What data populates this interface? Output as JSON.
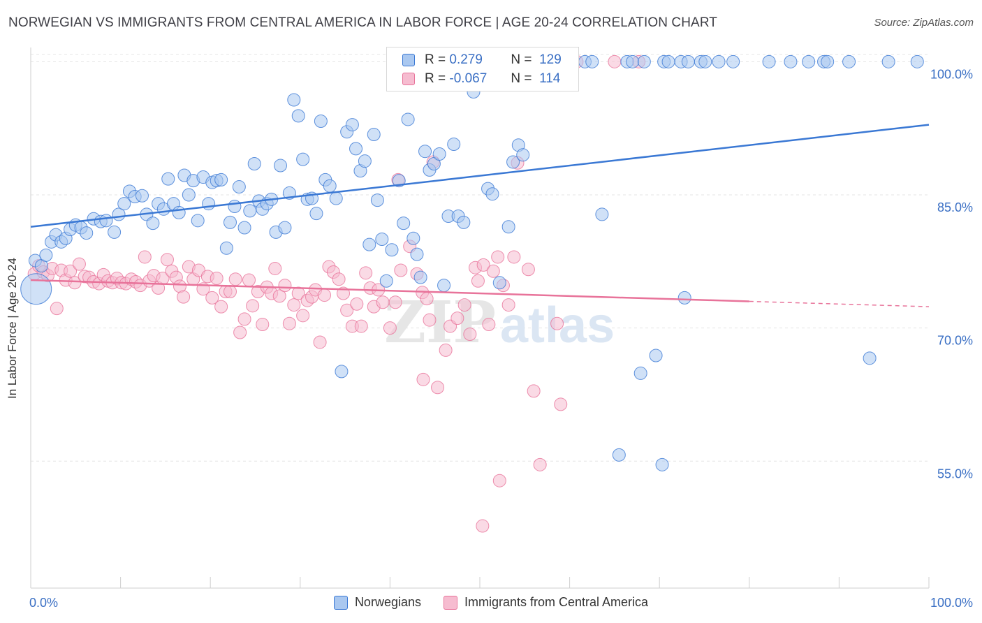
{
  "title": "NORWEGIAN VS IMMIGRANTS FROM CENTRAL AMERICA IN LABOR FORCE | AGE 20-24 CORRELATION CHART",
  "source": "Source: ZipAtlas.com",
  "colors": {
    "blue": "#3a78d4",
    "blue_fill": "#aac8f0",
    "pink": "#e8739a",
    "pink_fill": "#f6bcd0",
    "axis_label": "#3a6fc4"
  },
  "legend_top": [
    {
      "r_label": "R =",
      "r_value": " 0.279",
      "n_label": "N =",
      "n_value": "129"
    },
    {
      "r_label": "R =",
      "r_value": "-0.067",
      "n_label": "N =",
      "n_value": "114"
    }
  ],
  "legend_bottom": [
    "Norwegians",
    "Immigrants from Central America"
  ],
  "chart_data": {
    "type": "scatter",
    "title": "NORWEGIAN VS IMMIGRANTS FROM CENTRAL AMERICA IN LABOR FORCE | AGE 20-24 CORRELATION CHART",
    "ylabel": "In Labor Force | Age 20-24",
    "xlabel": "",
    "x_tick_labels": [
      "0.0%",
      "100.0%"
    ],
    "y_tick_labels": [
      "100.0%",
      "85.0%",
      "70.0%",
      "55.0%"
    ],
    "y_ticks": [
      100,
      85,
      70,
      55
    ],
    "xlim": [
      0,
      100
    ],
    "ylim": [
      40.7,
      101.6
    ],
    "watermark": "ZIPatlas",
    "series": [
      {
        "name": "Norwegians",
        "color": "#3a78d4",
        "trend": {
          "x": [
            0,
            100
          ],
          "y": [
            81.4,
            92.9
          ]
        },
        "points": [
          [
            0.6,
            74.4
          ],
          [
            0.5,
            77.6
          ],
          [
            1.2,
            77.0
          ],
          [
            1.7,
            78.2
          ],
          [
            2.3,
            79.7
          ],
          [
            2.8,
            80.5
          ],
          [
            3.4,
            79.7
          ],
          [
            3.9,
            80.1
          ],
          [
            4.4,
            81.1
          ],
          [
            5.0,
            81.6
          ],
          [
            5.6,
            81.3
          ],
          [
            6.2,
            80.7
          ],
          [
            7.0,
            82.3
          ],
          [
            7.8,
            82.0
          ],
          [
            8.4,
            82.1
          ],
          [
            9.3,
            80.8
          ],
          [
            9.8,
            82.8
          ],
          [
            10.4,
            84.0
          ],
          [
            11.0,
            85.4
          ],
          [
            11.6,
            84.8
          ],
          [
            12.4,
            84.9
          ],
          [
            12.9,
            82.8
          ],
          [
            13.6,
            81.8
          ],
          [
            14.2,
            84.0
          ],
          [
            14.8,
            83.4
          ],
          [
            15.3,
            86.8
          ],
          [
            15.9,
            84.0
          ],
          [
            16.5,
            83.0
          ],
          [
            17.1,
            87.2
          ],
          [
            17.6,
            85.0
          ],
          [
            18.1,
            86.6
          ],
          [
            18.6,
            82.1
          ],
          [
            19.2,
            87.0
          ],
          [
            19.8,
            84.0
          ],
          [
            20.2,
            86.4
          ],
          [
            20.7,
            86.6
          ],
          [
            21.2,
            86.7
          ],
          [
            21.8,
            79.0
          ],
          [
            22.2,
            81.9
          ],
          [
            22.7,
            83.7
          ],
          [
            23.2,
            85.9
          ],
          [
            23.8,
            81.3
          ],
          [
            24.4,
            83.2
          ],
          [
            24.9,
            88.5
          ],
          [
            25.4,
            84.3
          ],
          [
            25.8,
            83.4
          ],
          [
            26.3,
            84.0
          ],
          [
            26.8,
            84.5
          ],
          [
            27.3,
            80.8
          ],
          [
            27.8,
            88.3
          ],
          [
            28.3,
            81.3
          ],
          [
            28.8,
            85.2
          ],
          [
            29.3,
            95.7
          ],
          [
            29.8,
            93.9
          ],
          [
            30.3,
            89.0
          ],
          [
            30.8,
            84.5
          ],
          [
            31.3,
            84.6
          ],
          [
            31.8,
            82.9
          ],
          [
            32.3,
            93.3
          ],
          [
            32.8,
            86.7
          ],
          [
            33.3,
            86.0
          ],
          [
            34.0,
            84.6
          ],
          [
            34.6,
            65.1
          ],
          [
            35.2,
            92.1
          ],
          [
            35.8,
            92.9
          ],
          [
            36.2,
            90.2
          ],
          [
            36.7,
            87.7
          ],
          [
            37.2,
            88.8
          ],
          [
            37.7,
            79.4
          ],
          [
            38.2,
            91.8
          ],
          [
            38.6,
            84.4
          ],
          [
            39.1,
            80.0
          ],
          [
            39.6,
            75.3
          ],
          [
            40.2,
            78.8
          ],
          [
            41.0,
            86.6
          ],
          [
            41.5,
            81.8
          ],
          [
            42.0,
            93.5
          ],
          [
            42.6,
            80.1
          ],
          [
            43.0,
            78.3
          ],
          [
            43.4,
            75.7
          ],
          [
            43.9,
            89.9
          ],
          [
            44.4,
            87.8
          ],
          [
            44.9,
            88.5
          ],
          [
            45.5,
            89.6
          ],
          [
            46.0,
            74.8
          ],
          [
            46.5,
            82.6
          ],
          [
            47.1,
            90.7
          ],
          [
            47.6,
            82.6
          ],
          [
            48.2,
            81.9
          ],
          [
            48.8,
            100.0
          ],
          [
            49.3,
            96.6
          ],
          [
            50.3,
            100.0
          ],
          [
            50.9,
            85.7
          ],
          [
            51.4,
            85.1
          ],
          [
            52.2,
            75.1
          ],
          [
            53.2,
            81.4
          ],
          [
            53.7,
            88.7
          ],
          [
            54.3,
            90.6
          ],
          [
            54.8,
            89.5
          ],
          [
            55.4,
            100.0
          ],
          [
            56.4,
            100.0
          ],
          [
            57.0,
            99.8
          ],
          [
            59.4,
            100.0
          ],
          [
            60.2,
            100.0
          ],
          [
            61.7,
            100.0
          ],
          [
            62.5,
            100.0
          ],
          [
            63.6,
            82.8
          ],
          [
            65.5,
            55.7
          ],
          [
            66.4,
            100.0
          ],
          [
            67.0,
            100.0
          ],
          [
            68.3,
            100.0
          ],
          [
            69.6,
            66.9
          ],
          [
            70.5,
            100.0
          ],
          [
            71.0,
            100.0
          ],
          [
            72.4,
            100.0
          ],
          [
            73.2,
            100.0
          ],
          [
            74.6,
            100.0
          ],
          [
            75.1,
            100.0
          ],
          [
            76.6,
            100.0
          ],
          [
            78.2,
            100.0
          ],
          [
            82.2,
            100.0
          ],
          [
            84.6,
            100.0
          ],
          [
            86.6,
            100.0
          ],
          [
            88.3,
            100.0
          ],
          [
            88.7,
            100.0
          ],
          [
            91.1,
            100.0
          ],
          [
            93.4,
            66.6
          ],
          [
            95.5,
            100.0
          ],
          [
            98.7,
            100.0
          ],
          [
            67.9,
            64.9
          ],
          [
            70.3,
            54.6
          ],
          [
            72.8,
            73.4
          ]
        ]
      },
      {
        "name": "Immigrants from Central America",
        "color": "#e8739a",
        "trend": {
          "x": [
            0,
            80
          ],
          "y": [
            75.4,
            73.0
          ]
        },
        "trend_dashed": {
          "x": [
            80,
            100
          ],
          "y": [
            73.0,
            72.4
          ]
        },
        "points": [
          [
            0.4,
            76.1
          ],
          [
            0.9,
            77.0
          ],
          [
            1.4,
            76.3
          ],
          [
            1.9,
            75.9
          ],
          [
            2.4,
            76.7
          ],
          [
            2.9,
            72.2
          ],
          [
            3.4,
            76.5
          ],
          [
            3.9,
            75.4
          ],
          [
            4.4,
            76.4
          ],
          [
            4.9,
            75.1
          ],
          [
            5.4,
            77.2
          ],
          [
            6.0,
            75.8
          ],
          [
            6.5,
            75.7
          ],
          [
            7.0,
            75.2
          ],
          [
            7.6,
            75.0
          ],
          [
            8.1,
            76.0
          ],
          [
            8.6,
            75.3
          ],
          [
            9.1,
            75.1
          ],
          [
            9.6,
            75.6
          ],
          [
            10.1,
            75.1
          ],
          [
            10.6,
            75.0
          ],
          [
            11.2,
            75.5
          ],
          [
            11.7,
            75.2
          ],
          [
            12.2,
            74.8
          ],
          [
            12.7,
            78.0
          ],
          [
            13.2,
            75.3
          ],
          [
            13.7,
            75.9
          ],
          [
            14.2,
            74.5
          ],
          [
            14.7,
            75.6
          ],
          [
            15.2,
            77.7
          ],
          [
            15.7,
            76.4
          ],
          [
            16.2,
            75.7
          ],
          [
            16.6,
            74.7
          ],
          [
            17.0,
            73.5
          ],
          [
            17.6,
            76.9
          ],
          [
            18.1,
            75.5
          ],
          [
            18.7,
            76.5
          ],
          [
            19.2,
            74.4
          ],
          [
            19.7,
            75.8
          ],
          [
            20.2,
            73.4
          ],
          [
            20.7,
            75.6
          ],
          [
            21.2,
            72.4
          ],
          [
            21.7,
            74.1
          ],
          [
            22.2,
            74.1
          ],
          [
            22.8,
            75.5
          ],
          [
            23.3,
            69.5
          ],
          [
            23.8,
            71.0
          ],
          [
            24.3,
            75.4
          ],
          [
            24.7,
            72.5
          ],
          [
            25.3,
            74.1
          ],
          [
            25.8,
            70.4
          ],
          [
            26.3,
            74.6
          ],
          [
            26.8,
            73.9
          ],
          [
            27.2,
            76.7
          ],
          [
            27.7,
            73.6
          ],
          [
            28.3,
            74.8
          ],
          [
            28.8,
            70.5
          ],
          [
            29.3,
            72.6
          ],
          [
            29.8,
            73.9
          ],
          [
            30.3,
            71.4
          ],
          [
            30.8,
            73.1
          ],
          [
            31.3,
            73.5
          ],
          [
            31.7,
            74.3
          ],
          [
            32.2,
            68.4
          ],
          [
            32.7,
            73.7
          ],
          [
            33.2,
            76.9
          ],
          [
            33.7,
            76.3
          ],
          [
            34.3,
            75.5
          ],
          [
            34.8,
            73.9
          ],
          [
            35.2,
            72.0
          ],
          [
            35.8,
            70.2
          ],
          [
            36.3,
            72.7
          ],
          [
            36.8,
            70.2
          ],
          [
            37.3,
            76.2
          ],
          [
            37.8,
            74.5
          ],
          [
            38.2,
            72.4
          ],
          [
            38.7,
            74.3
          ],
          [
            39.2,
            72.9
          ],
          [
            40.0,
            70.0
          ],
          [
            40.6,
            72.9
          ],
          [
            40.9,
            86.7
          ],
          [
            41.2,
            76.5
          ],
          [
            42.2,
            79.2
          ],
          [
            43.0,
            76.1
          ],
          [
            43.6,
            74.0
          ],
          [
            44.1,
            73.3
          ],
          [
            44.8,
            88.7
          ],
          [
            45.3,
            63.3
          ],
          [
            46.2,
            67.5
          ],
          [
            46.7,
            70.2
          ],
          [
            47.5,
            71.1
          ],
          [
            48.3,
            72.6
          ],
          [
            48.9,
            69.3
          ],
          [
            49.5,
            76.8
          ],
          [
            49.8,
            75.3
          ],
          [
            50.4,
            77.1
          ],
          [
            51.0,
            70.4
          ],
          [
            51.5,
            76.4
          ],
          [
            52.0,
            78.0
          ],
          [
            52.6,
            74.8
          ],
          [
            53.2,
            72.6
          ],
          [
            53.8,
            78.0
          ],
          [
            54.2,
            88.6
          ],
          [
            55.4,
            76.6
          ],
          [
            56.0,
            62.9
          ],
          [
            56.7,
            54.6
          ],
          [
            58.6,
            70.5
          ],
          [
            59.0,
            61.4
          ],
          [
            60.8,
            100.0
          ],
          [
            59.3,
            100.0
          ],
          [
            65.0,
            100.0
          ],
          [
            67.7,
            100.0
          ],
          [
            50.3,
            47.7
          ],
          [
            52.2,
            52.8
          ],
          [
            43.7,
            64.2
          ],
          [
            44.4,
            70.9
          ]
        ]
      }
    ]
  }
}
